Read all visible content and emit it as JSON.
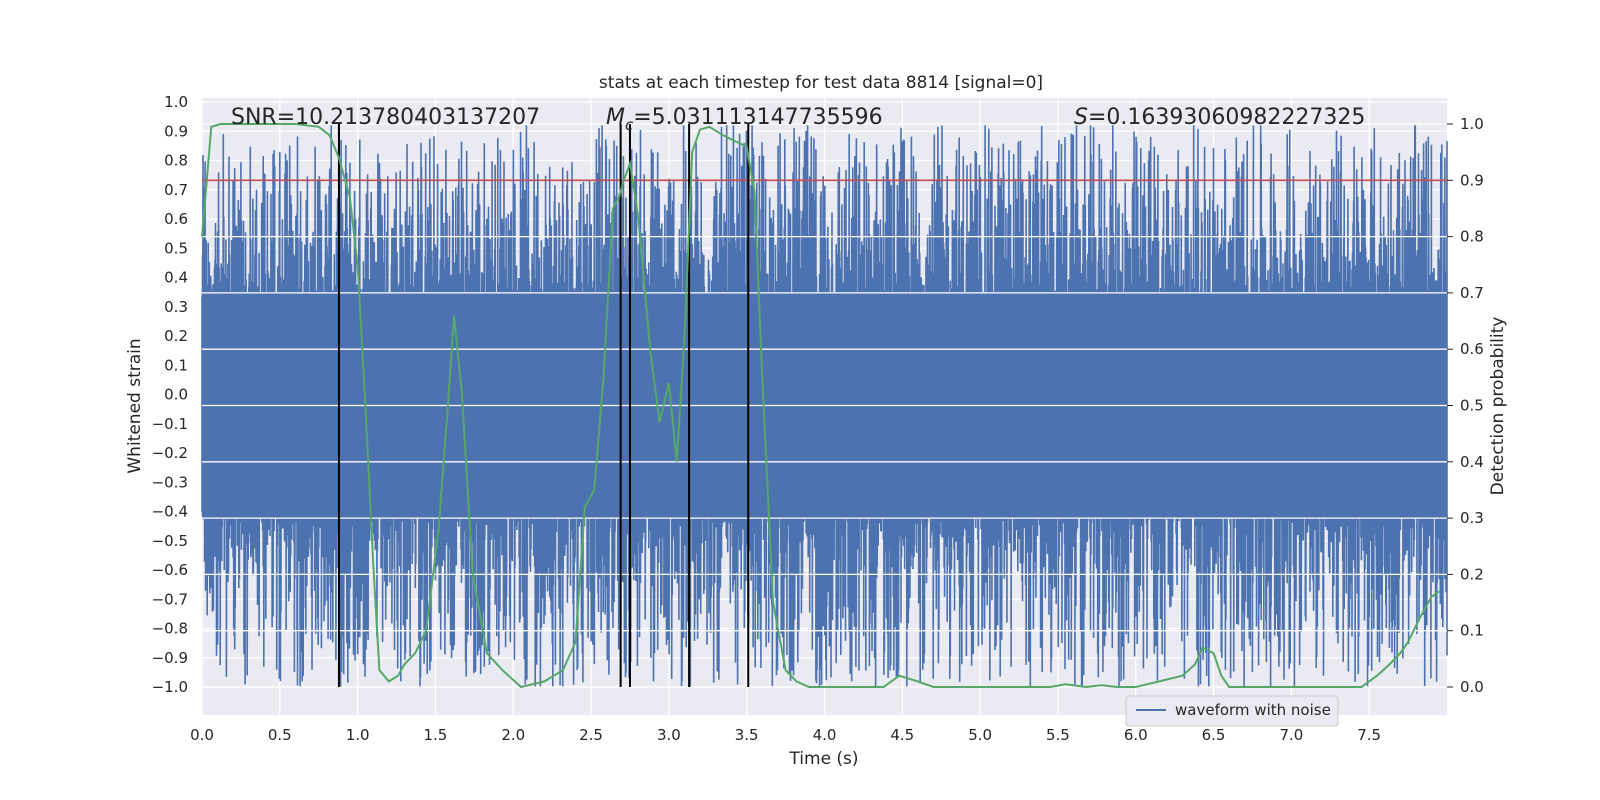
{
  "chart_data": {
    "type": "line",
    "title": "stats at each timestep for test data 8814 [signal=0]",
    "xlabel": "Time (s)",
    "ylabel": "Whitened strain",
    "y2label": "Detection probability",
    "xlim": [
      0.0,
      8.0
    ],
    "ylim": [
      -1.1,
      1.0
    ],
    "y2lim": [
      -0.05,
      1.04
    ],
    "x_ticks": [
      "0.0",
      "0.5",
      "1.0",
      "1.5",
      "2.0",
      "2.5",
      "3.0",
      "3.5",
      "4.0",
      "4.5",
      "5.0",
      "5.5",
      "6.0",
      "6.5",
      "7.0",
      "7.5"
    ],
    "y_ticks": [
      "1.0",
      "0.9",
      "0.8",
      "0.7",
      "0.6",
      "0.5",
      "0.4",
      "0.3",
      "0.2",
      "0.1",
      "0.0",
      "−0.1",
      "−0.2",
      "−0.3",
      "−0.4",
      "−0.5",
      "−0.6",
      "−0.7",
      "−0.8",
      "−0.9",
      "−1.0"
    ],
    "y2_ticks": [
      "1.0",
      "0.9",
      "0.8",
      "0.7",
      "0.6",
      "0.5",
      "0.4",
      "0.3",
      "0.2",
      "0.1",
      "0.0"
    ],
    "annotations": {
      "snr": "SNR=10.213780403137207",
      "mc_symbol": "M",
      "mc_sub": "c",
      "mc_value": "=5.031113147735596",
      "s_symbol": "S",
      "s_value": "=0.16393060982227325"
    },
    "threshold": {
      "value": 0.9,
      "color": "#c44e52"
    },
    "detection_boundaries_s": [
      0.88,
      2.69,
      2.75,
      3.13,
      3.51
    ],
    "legend": [
      {
        "label": "waveform with noise",
        "color": "#4c72b0"
      }
    ],
    "series": [
      {
        "name": "waveform with noise",
        "axis": "left",
        "color": "#4c72b0",
        "generated": true,
        "points": 2400,
        "envelope": {
          "typical_max": 0.35,
          "typical_min": -0.42,
          "peak_max": 0.92,
          "peak_min": -1.0
        }
      },
      {
        "name": "Detection probability",
        "axis": "right",
        "color": "#55a868",
        "x": [
          0.0,
          0.06,
          0.12,
          0.25,
          0.4,
          0.6,
          0.75,
          0.82,
          0.88,
          0.95,
          1.0,
          1.05,
          1.1,
          1.14,
          1.2,
          1.26,
          1.3,
          1.37,
          1.44,
          1.52,
          1.58,
          1.62,
          1.67,
          1.74,
          1.83,
          1.93,
          2.05,
          2.2,
          2.32,
          2.4,
          2.46,
          2.52,
          2.58,
          2.64,
          2.68,
          2.71,
          2.75,
          2.8,
          2.88,
          2.94,
          3.0,
          3.05,
          3.1,
          3.15,
          3.2,
          3.26,
          3.35,
          3.42,
          3.5,
          3.55,
          3.6,
          3.67,
          3.75,
          3.82,
          3.9,
          4.0,
          4.2,
          4.38,
          4.48,
          4.6,
          4.7,
          4.9,
          5.05,
          5.2,
          5.45,
          5.55,
          5.68,
          5.78,
          5.88,
          6.0,
          6.15,
          6.3,
          6.38,
          6.43,
          6.5,
          6.55,
          6.6,
          6.65,
          6.8,
          7.0,
          7.3,
          7.45,
          7.55,
          7.63,
          7.7,
          7.75,
          7.82,
          7.9,
          7.95
        ],
        "values": [
          0.8,
          0.995,
          1.0,
          1.0,
          1.0,
          1.0,
          0.995,
          0.98,
          0.94,
          0.87,
          0.75,
          0.5,
          0.22,
          0.03,
          0.01,
          0.02,
          0.04,
          0.06,
          0.1,
          0.28,
          0.5,
          0.66,
          0.52,
          0.2,
          0.06,
          0.03,
          0.0,
          0.01,
          0.03,
          0.08,
          0.32,
          0.35,
          0.55,
          0.85,
          0.87,
          0.9,
          0.93,
          0.84,
          0.6,
          0.47,
          0.54,
          0.4,
          0.62,
          0.95,
          0.99,
          0.995,
          0.98,
          0.97,
          0.96,
          0.88,
          0.55,
          0.15,
          0.03,
          0.01,
          0.0,
          0.0,
          0.0,
          0.0,
          0.02,
          0.01,
          0.0,
          0.0,
          0.0,
          0.0,
          0.0,
          0.005,
          0.0,
          0.003,
          0.0,
          0.0,
          0.01,
          0.02,
          0.04,
          0.07,
          0.06,
          0.02,
          0.0,
          0.0,
          0.0,
          0.0,
          0.0,
          0.0,
          0.02,
          0.04,
          0.06,
          0.08,
          0.12,
          0.16,
          0.17
        ]
      }
    ]
  }
}
